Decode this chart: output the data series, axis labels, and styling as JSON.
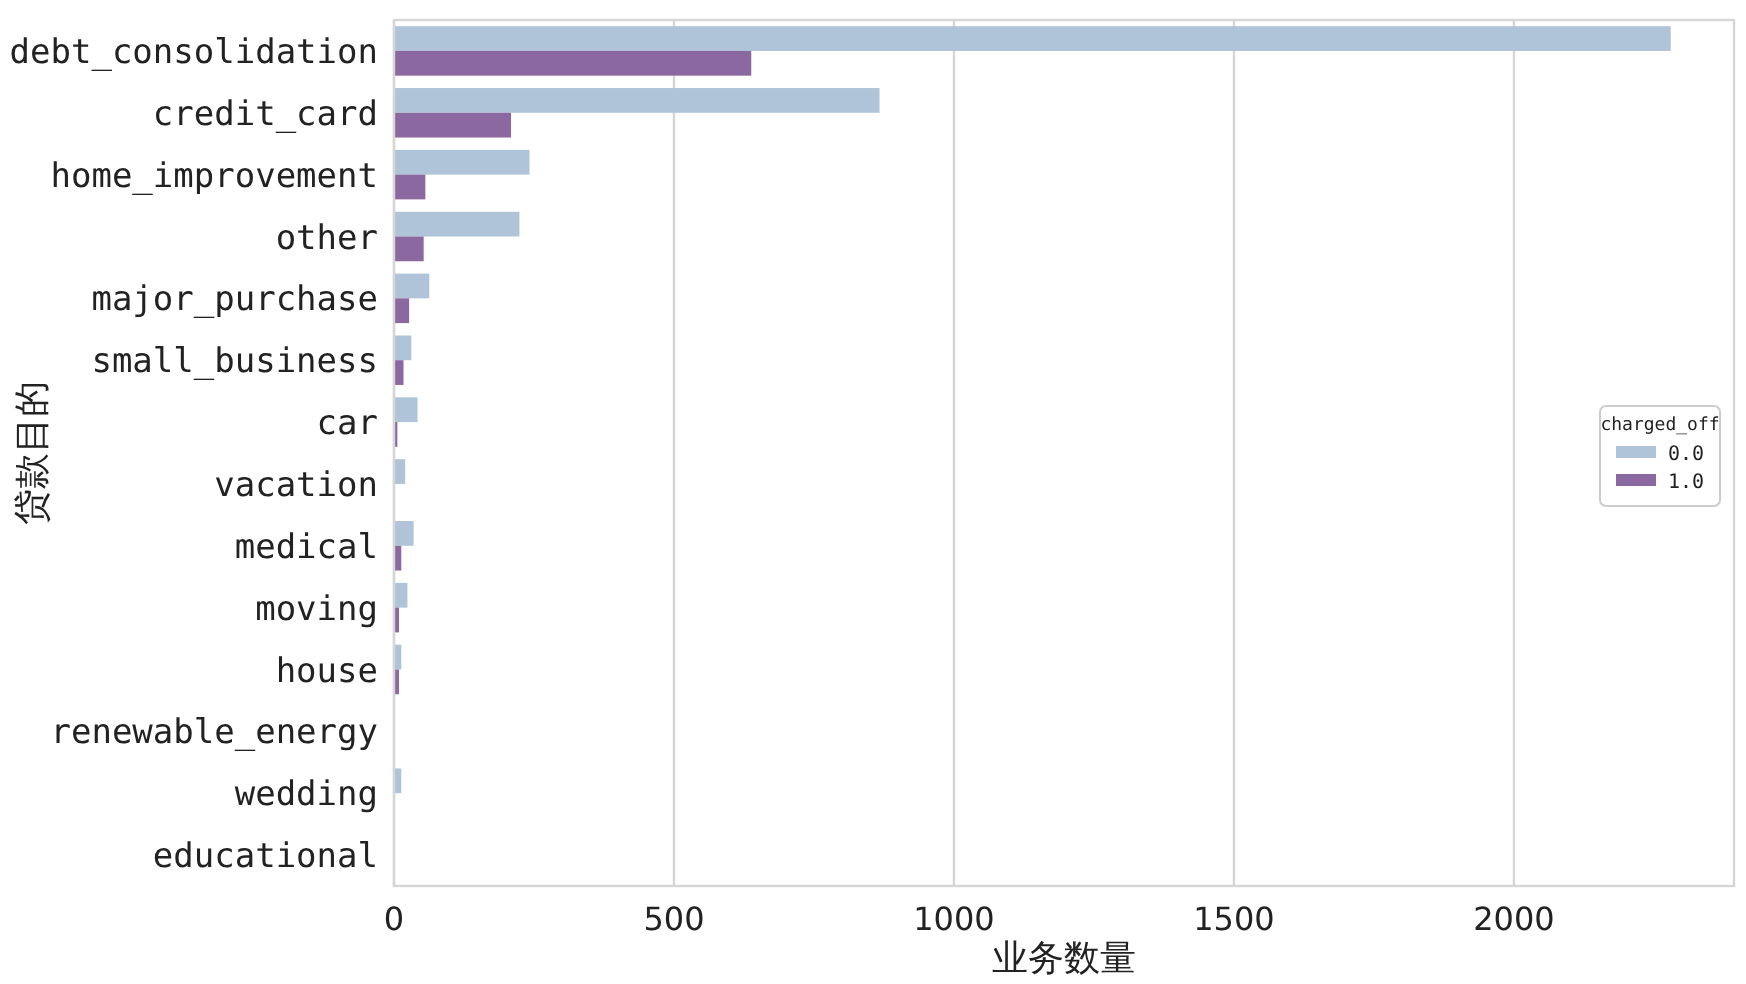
{
  "chart_data": {
    "type": "bar",
    "orientation": "horizontal",
    "xlabel": "业务数量",
    "ylabel": "贷款目的",
    "legend_title": "charged_off",
    "legend": "right",
    "grid": "x",
    "categories": [
      "debt_consolidation",
      "credit_card",
      "home_improvement",
      "other",
      "major_purchase",
      "small_business",
      "car",
      "vacation",
      "medical",
      "moving",
      "house",
      "renewable_energy",
      "wedding",
      "educational"
    ],
    "series": [
      {
        "name": "0.0",
        "color": "#afc4d8",
        "values": [
          2280,
          867,
          242,
          224,
          63,
          31,
          42,
          20,
          35,
          24,
          13,
          0,
          13,
          0
        ]
      },
      {
        "name": "1.0",
        "color": "#8b68a0",
        "values": [
          638,
          209,
          56,
          53,
          27,
          17,
          6,
          0,
          13,
          9,
          9,
          0,
          0,
          0
        ]
      }
    ],
    "xlim": [
      0,
      2393
    ],
    "xticks": [
      0,
      500,
      1000,
      1500,
      2000
    ]
  }
}
